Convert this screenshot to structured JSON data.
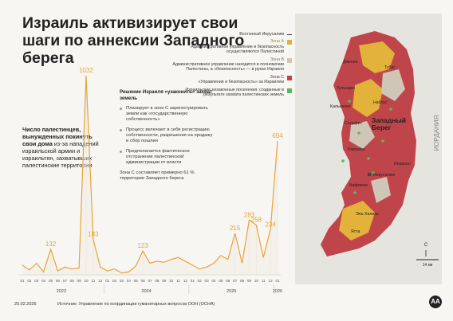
{
  "title": "Израиль активизирует свои шаги по аннексии Западного берега",
  "left_note": {
    "bold": "Число палестинцев, вынужденных покинуть свои дома",
    "rest": " из-за нападений израильской армии и израильтян, захватывших палестинские территории"
  },
  "decision": {
    "title": "Решение Израиля «узаконить» захват земель",
    "items": [
      "Планирует в зоне С зарегистрировать земли как «государственную собственность»",
      "Процесс включает в себя регистрацию собственности, разрешения на продажу и сбор пошлин",
      "Предполагается фактическое отстранение палестинской администрации от власти"
    ],
    "footnote": "Зона С составляет примерно 61 % территории Западного берега"
  },
  "legend": {
    "east_jerusalem": "Восточный Иерусалим",
    "zone_a_title": "Зона А",
    "zone_a_desc": "Административное управление и безопасность осуществляются Палестиной",
    "zone_b_title": "Зона B",
    "zone_b_desc": "Административное управление находится в полномочии Палестины, а «безопасность» — в руках Израиля",
    "zone_c_title": "Зона С",
    "zone_c_desc": "«Управление и безопасность» за Израилем",
    "settlements_desc": "Израильские незаконные поселения, созданные в результате захвата палестинских земель",
    "colors": {
      "zone_a": "#e2b23a",
      "zone_b": "#cfc6b8",
      "zone_c": "#c0454a",
      "settlements": "#5cb85c",
      "jerusalem": "#444444"
    }
  },
  "map": {
    "region_label": "Западный Берег",
    "country_label": "ИОРДАНИЯ",
    "cities": [
      "Дженин",
      "Тубас",
      "Тулькарм",
      "Наблус",
      "Калькилия",
      "Сальфит",
      "Рамалла",
      "Иерихон",
      "Иерусалим",
      "Вифлеем",
      "Эль-Халиль",
      "Ятта"
    ],
    "north_label": "С",
    "scale_label": "14 км"
  },
  "footer": {
    "date": "20.02.2026",
    "source": "Источник: Управление по координации гуманитарных вопросов ООН (OCHA)"
  },
  "chart_data": {
    "type": "line",
    "color": "#e8a33a",
    "months": [
      "01",
      "02",
      "03",
      "04",
      "05",
      "06",
      "07",
      "08",
      "09",
      "10",
      "11",
      "12",
      "01",
      "02",
      "03",
      "04",
      "05",
      "06",
      "07",
      "08",
      "09",
      "10",
      "11",
      "12",
      "01",
      "02",
      "03",
      "04",
      "05",
      "06",
      "07",
      "08",
      "09",
      "10",
      "11",
      "12",
      "01"
    ],
    "years": [
      {
        "label": "2023"
      },
      {
        "label": "2024"
      },
      {
        "label": "2025"
      },
      {
        "label": "2026"
      }
    ],
    "values": [
      50,
      25,
      60,
      15,
      132,
      20,
      40,
      30,
      35,
      1032,
      183,
      40,
      20,
      30,
      10,
      15,
      45,
      123,
      60,
      70,
      65,
      80,
      90,
      70,
      50,
      30,
      40,
      60,
      100,
      80,
      215,
      60,
      283,
      258,
      90,
      234,
      694
    ],
    "labeled": [
      132,
      1032,
      183,
      123,
      215,
      283,
      258,
      234,
      694
    ],
    "ylim": [
      0,
      1100
    ]
  }
}
